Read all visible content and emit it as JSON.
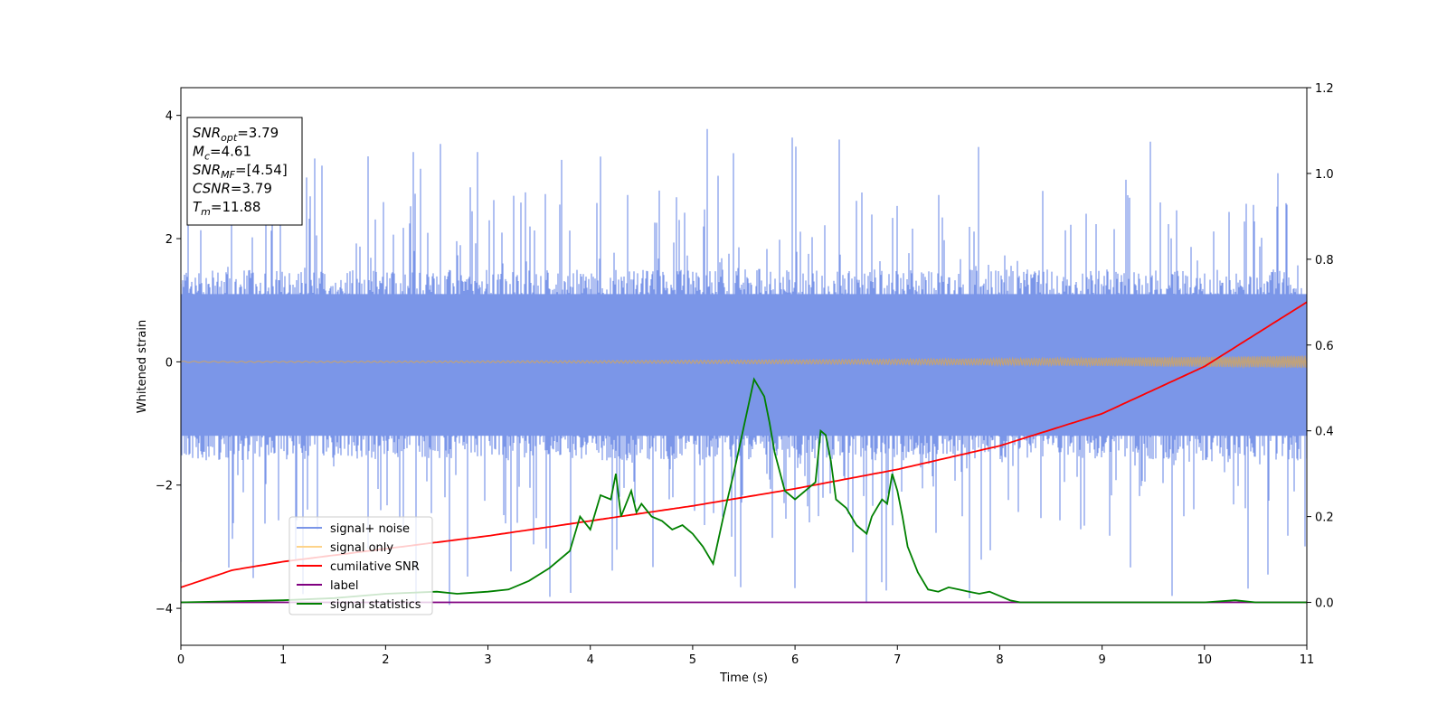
{
  "chart_data": {
    "type": "line",
    "xlabel": "Time (s)",
    "ylabel": "Whitened strain",
    "xlim": [
      0,
      11
    ],
    "ylim": [
      -4.6,
      4.45
    ],
    "y2lim": [
      -0.1,
      1.2
    ],
    "x_ticks": [
      "0",
      "1",
      "2",
      "3",
      "4",
      "5",
      "6",
      "7",
      "8",
      "9",
      "10",
      "11"
    ],
    "y_ticks": [
      "4",
      "2",
      "0",
      "−2",
      "−4"
    ],
    "y2_ticks": [
      "1.2",
      "1.0",
      "0.8",
      "0.6",
      "0.4",
      "0.2",
      "0.0"
    ],
    "grid": false,
    "legend_position": "lower-left",
    "info_box": {
      "lines": [
        {
          "label": "SNR",
          "sub": "opt",
          "value": "=3.79"
        },
        {
          "label": "M",
          "sub": "c",
          "value": "=4.61"
        },
        {
          "label": "SNR",
          "sub": "MF",
          "value": "=[4.54]"
        },
        {
          "label": "CSNR",
          "sub": "",
          "value": "=3.79"
        },
        {
          "label": "T",
          "sub": "m",
          "value": "=11.88"
        }
      ]
    },
    "series": [
      {
        "name": "signal+ noise",
        "axis": "left",
        "color": "#7b96e8",
        "kind": "noise",
        "band_upper": 1.5,
        "band_lower": -1.6,
        "spike_max": 3.85,
        "spike_min": -4.15
      },
      {
        "name": "signal only",
        "axis": "left",
        "color": "#fdd38a",
        "kind": "chirp",
        "amp_start": 0.01,
        "amp_end": 0.1
      },
      {
        "name": "cumilative SNR",
        "axis": "right",
        "color": "#ff0000",
        "x": [
          0,
          0.5,
          1,
          2,
          3,
          4,
          5,
          6,
          7,
          8,
          9,
          10,
          10.5,
          11
        ],
        "y": [
          0.035,
          0.075,
          0.095,
          0.125,
          0.155,
          0.19,
          0.225,
          0.265,
          0.31,
          0.365,
          0.44,
          0.55,
          0.625,
          0.7
        ]
      },
      {
        "name": "label",
        "axis": "right",
        "color": "#800080",
        "x": [
          0,
          11
        ],
        "y": [
          0.0,
          0.0
        ]
      },
      {
        "name": "signal statistics",
        "axis": "right",
        "color": "#008000",
        "x": [
          0,
          1,
          1.5,
          2,
          2.5,
          2.7,
          3,
          3.2,
          3.4,
          3.6,
          3.8,
          3.9,
          4.0,
          4.1,
          4.2,
          4.25,
          4.3,
          4.4,
          4.45,
          4.5,
          4.6,
          4.7,
          4.8,
          4.9,
          5.0,
          5.1,
          5.2,
          5.3,
          5.35,
          5.4,
          5.5,
          5.6,
          5.7,
          5.75,
          5.8,
          5.9,
          6.0,
          6.1,
          6.2,
          6.25,
          6.3,
          6.35,
          6.4,
          6.5,
          6.6,
          6.7,
          6.75,
          6.8,
          6.85,
          6.9,
          6.95,
          7.0,
          7.05,
          7.1,
          7.2,
          7.3,
          7.4,
          7.5,
          7.6,
          7.7,
          7.8,
          7.9,
          8.0,
          8.1,
          8.2,
          8.5,
          9.0,
          10.0,
          10.3,
          10.5,
          11.0
        ],
        "y": [
          0.0,
          0.005,
          0.01,
          0.02,
          0.025,
          0.02,
          0.025,
          0.03,
          0.05,
          0.08,
          0.12,
          0.2,
          0.17,
          0.25,
          0.24,
          0.3,
          0.2,
          0.26,
          0.21,
          0.23,
          0.2,
          0.19,
          0.17,
          0.18,
          0.16,
          0.13,
          0.09,
          0.2,
          0.25,
          0.3,
          0.41,
          0.52,
          0.48,
          0.42,
          0.35,
          0.26,
          0.24,
          0.26,
          0.28,
          0.4,
          0.39,
          0.33,
          0.24,
          0.22,
          0.18,
          0.16,
          0.2,
          0.22,
          0.24,
          0.23,
          0.3,
          0.26,
          0.2,
          0.13,
          0.07,
          0.03,
          0.025,
          0.035,
          0.03,
          0.025,
          0.02,
          0.025,
          0.015,
          0.005,
          0.0,
          0.0,
          0.0,
          0.0,
          0.005,
          0.0,
          0.0
        ]
      }
    ]
  }
}
